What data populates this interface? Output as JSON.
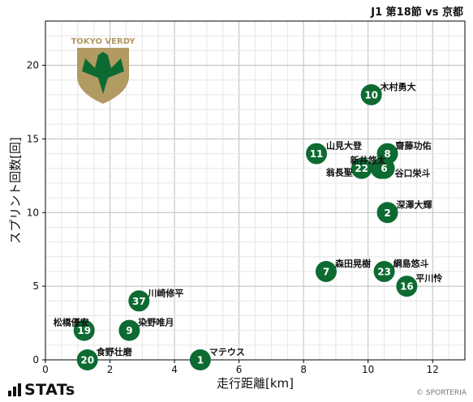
{
  "header": {
    "title": "J1 第18節 vs 京都"
  },
  "footer": {
    "brand": "STATs",
    "credit": "© SPORTERIA"
  },
  "logo": {
    "text": "TOKYO VERDY"
  },
  "colors": {
    "marker": "#0d6b32",
    "marker_text": "#ffffff",
    "grid": "#d0d0d0",
    "logo_gold": "#b29a63",
    "logo_green": "#0d6b32"
  },
  "chart_data": {
    "type": "scatter",
    "xlabel": "走行距離[km]",
    "ylabel": "スプリント回数[回]",
    "xlim": [
      0,
      13
    ],
    "ylim": [
      0,
      23
    ],
    "xticks": [
      0,
      2,
      4,
      6,
      8,
      10,
      12
    ],
    "yticks": [
      0,
      5,
      10,
      15,
      20
    ],
    "grid": true,
    "points": [
      {
        "number": "10",
        "name": "木村勇大",
        "x": 10.1,
        "y": 18
      },
      {
        "number": "11",
        "name": "山見大登",
        "x": 8.4,
        "y": 14
      },
      {
        "number": "8",
        "name": "齋藤功佑",
        "x": 10.6,
        "y": 14
      },
      {
        "number": "22",
        "name": "翁長聖",
        "x": 9.8,
        "y": 13
      },
      {
        "number": "4",
        "name": "新井悠太",
        "x": 10.4,
        "y": 13
      },
      {
        "number": "6",
        "name": "谷口栄斗",
        "x": 10.5,
        "y": 13
      },
      {
        "number": "2",
        "name": "深澤大輝",
        "x": 10.6,
        "y": 10
      },
      {
        "number": "7",
        "name": "森田晃樹",
        "x": 8.7,
        "y": 6
      },
      {
        "number": "23",
        "name": "綱島悠斗",
        "x": 10.5,
        "y": 6
      },
      {
        "number": "16",
        "name": "平川怜",
        "x": 11.2,
        "y": 5
      },
      {
        "number": "37",
        "name": "川崎修平",
        "x": 2.9,
        "y": 4
      },
      {
        "number": "19",
        "name": "松橋優安",
        "x": 1.2,
        "y": 2
      },
      {
        "number": "9",
        "name": "染野唯月",
        "x": 2.6,
        "y": 2
      },
      {
        "number": "20",
        "name": "食野壮磨",
        "x": 1.3,
        "y": 0
      },
      {
        "number": "1",
        "name": "マテウス",
        "x": 4.8,
        "y": 0
      }
    ]
  }
}
